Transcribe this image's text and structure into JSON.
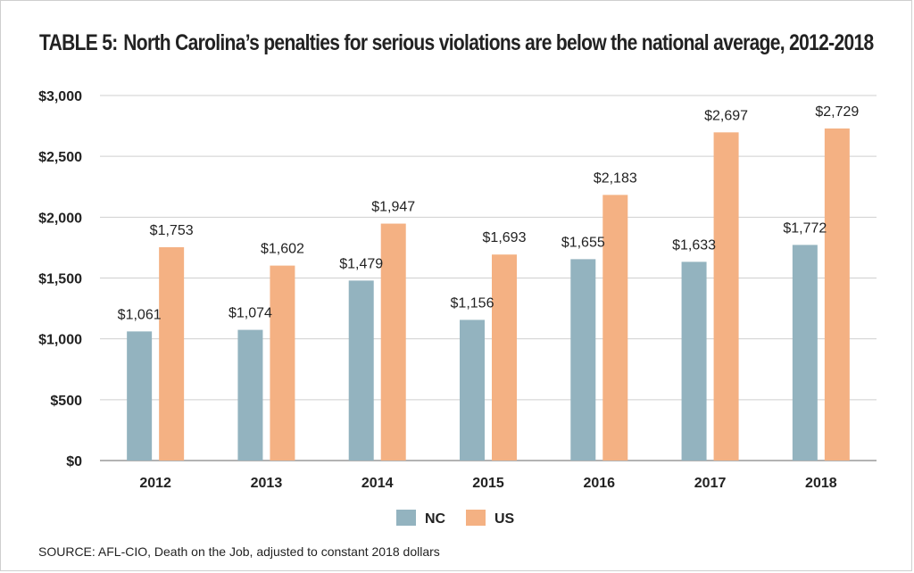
{
  "title": {
    "prefix": "TABLE 5:",
    "text": "North Carolina’s penalties for serious violations are below the national average, 2012-2018"
  },
  "source": "SOURCE: AFL-CIO, Death on the Job, adjusted to constant 2018 dollars",
  "colors": {
    "NC": "#93b3bf",
    "US": "#f4b183",
    "grid": "#cfcfcf",
    "axis": "#9a9a9a"
  },
  "chart_data": {
    "type": "bar",
    "title": "North Carolina’s penalties for serious violations are below the national average, 2012-2018",
    "categories": [
      "2012",
      "2013",
      "2014",
      "2015",
      "2016",
      "2017",
      "2018"
    ],
    "series": [
      {
        "name": "NC",
        "values": [
          1061,
          1074,
          1479,
          1156,
          1655,
          1633,
          1772
        ],
        "labels": [
          "$1,061",
          "$1,074",
          "$1,479",
          "$1,156",
          "$1,655",
          "$1,633",
          "$1,772"
        ]
      },
      {
        "name": "US",
        "values": [
          1753,
          1602,
          1947,
          1693,
          2183,
          2697,
          2729
        ],
        "labels": [
          "$1,753",
          "$1,602",
          "$1,947",
          "$1,693",
          "$2,183",
          "$2,697",
          "$2,729"
        ]
      }
    ],
    "ylim": [
      0,
      3000
    ],
    "yticks": [
      0,
      500,
      1000,
      1500,
      2000,
      2500,
      3000
    ],
    "ytick_labels": [
      "$0",
      "$500",
      "$1,000",
      "$1,500",
      "$2,000",
      "$2,500",
      "$3,000"
    ],
    "grid": true,
    "legend_position": "bottom-center",
    "xlabel": "",
    "ylabel": ""
  }
}
